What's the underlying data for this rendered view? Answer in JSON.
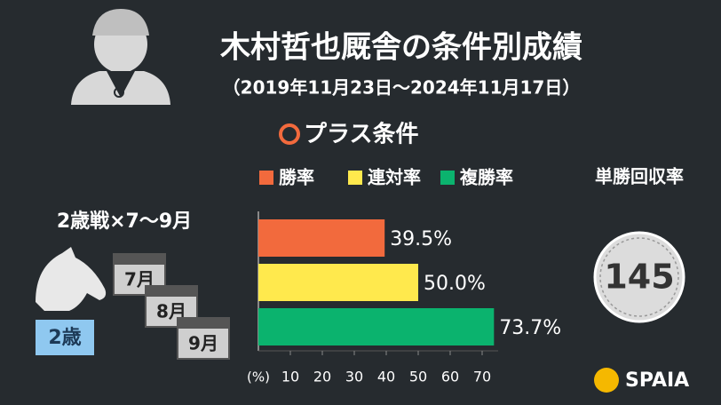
{
  "chart_data": {
    "type": "hbar",
    "title": "木村哲也厩舎の条件別成績",
    "subtitle": "（2019年11月23日〜2024年11月17日）",
    "section": "プラス条件",
    "condition": "2歳戦×7〜9月",
    "xlabel": "(%)",
    "series": [
      {
        "name": "勝率",
        "color": "#f26a3d",
        "values": [
          39.5
        ],
        "value_labels": [
          "39.5%"
        ]
      },
      {
        "name": "連対率",
        "color": "#ffe94d",
        "values": [
          50.0
        ],
        "value_labels": [
          "50.0%"
        ]
      },
      {
        "name": "複勝率",
        "color": "#0bb36e",
        "values": [
          73.7
        ],
        "value_labels": [
          "73.7%"
        ]
      }
    ],
    "xlim": [
      0,
      75
    ],
    "xticks": [
      10,
      20,
      30,
      40,
      50,
      60,
      70
    ],
    "win_return": {
      "label": "単勝回収率",
      "value": 145
    },
    "icons": {
      "age": "2歳",
      "months": [
        "7月",
        "8月",
        "9月"
      ]
    },
    "brand": "SPAIA"
  }
}
